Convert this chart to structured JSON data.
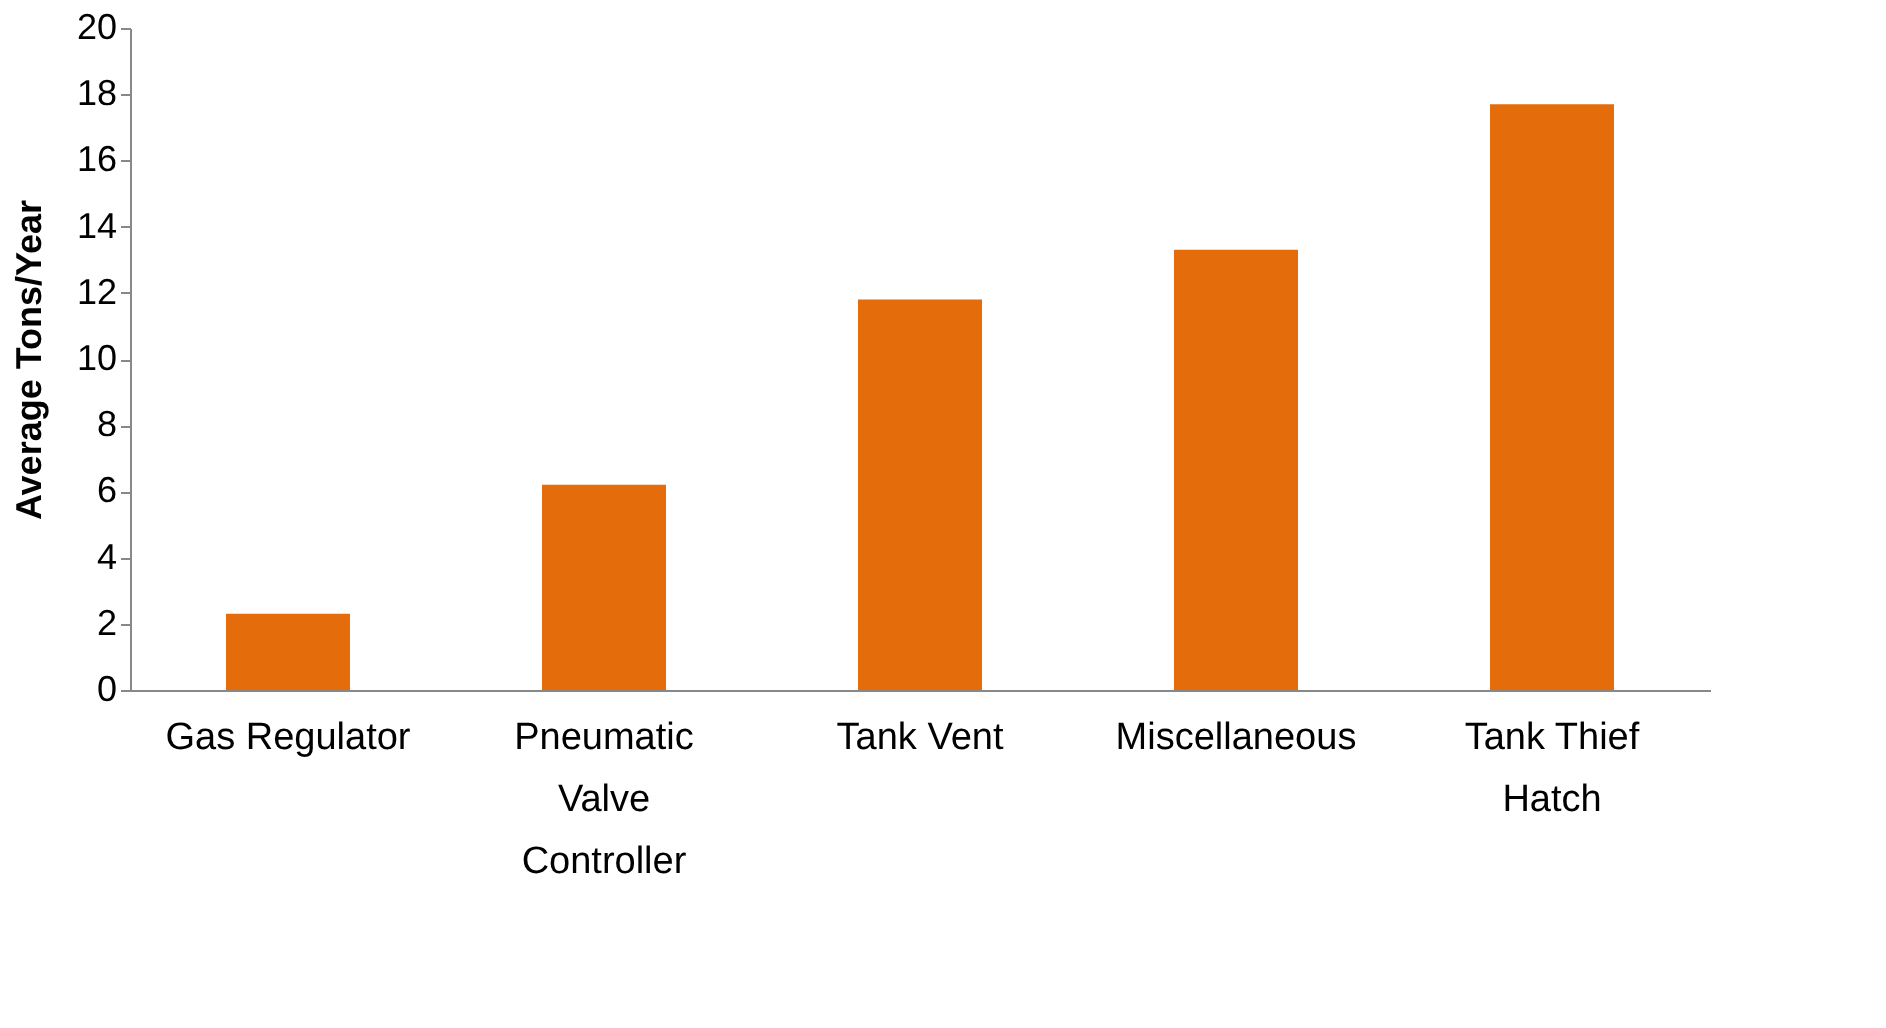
{
  "chart_data": {
    "type": "bar",
    "ylabel": "Average Tons/Year",
    "categories": [
      "Gas Regulator",
      "Pneumatic Valve Controller",
      "Tank Vent",
      "Miscellaneous",
      "Tank Thief Hatch"
    ],
    "values": [
      2.3,
      6.2,
      11.8,
      13.3,
      17.7
    ],
    "color": "#e46c0a",
    "ylim": [
      0,
      20
    ],
    "yticks": [
      0,
      2,
      4,
      6,
      8,
      10,
      12,
      14,
      16,
      18,
      20
    ],
    "grid": false
  }
}
